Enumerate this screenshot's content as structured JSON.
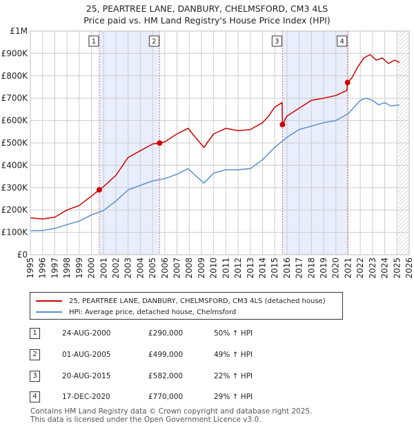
{
  "title_line1": "25, PEARTREE LANE, DANBURY, CHELMSFORD, CM3 4LS",
  "title_line2": "Price paid vs. HM Land Registry's House Price Index (HPI)",
  "colors": {
    "property": "#cc0000",
    "hpi": "#5b8ecf",
    "shade": "#e8eefb",
    "marker_line": "#dd6666",
    "grid": "#cccccc"
  },
  "legend": {
    "property_label": "25, PEARTREE LANE, DANBURY, CHELMSFORD, CM3 4LS (detached house)",
    "hpi_label": "HPI: Average price, detached house, Chelmsford"
  },
  "transactions": [
    {
      "num": "1",
      "date": "24-AUG-2000",
      "price": "£290,000",
      "hpi": "50% ↑ HPI"
    },
    {
      "num": "2",
      "date": "01-AUG-2005",
      "price": "£499,000",
      "hpi": "49% ↑ HPI"
    },
    {
      "num": "3",
      "date": "20-AUG-2015",
      "price": "£582,000",
      "hpi": "22% ↑ HPI"
    },
    {
      "num": "4",
      "date": "17-DEC-2020",
      "price": "£770,000",
      "hpi": "29% ↑ HPI"
    }
  ],
  "footer_line1": "Contains HM Land Registry data © Crown copyright and database right 2025.",
  "footer_line2": "This data is licensed under the Open Government Licence v3.0.",
  "chart_data": {
    "type": "line",
    "title": "25, PEARTREE LANE, DANBURY, CHELMSFORD, CM3 4LS",
    "subtitle": "Price paid vs. HM Land Registry's House Price Index (HPI)",
    "xlabel": "",
    "ylabel": "",
    "xlim": [
      1995,
      2026
    ],
    "ylim": [
      0,
      1000000
    ],
    "y_ticks": [
      {
        "value": 0,
        "label": "£0"
      },
      {
        "value": 100000,
        "label": "£100K"
      },
      {
        "value": 200000,
        "label": "£200K"
      },
      {
        "value": 300000,
        "label": "£300K"
      },
      {
        "value": 400000,
        "label": "£400K"
      },
      {
        "value": 500000,
        "label": "£500K"
      },
      {
        "value": 600000,
        "label": "£600K"
      },
      {
        "value": 700000,
        "label": "£700K"
      },
      {
        "value": 800000,
        "label": "£800K"
      },
      {
        "value": 900000,
        "label": "£900K"
      },
      {
        "value": 1000000,
        "label": "£1M"
      }
    ],
    "x_ticks": [
      "1995",
      "1996",
      "1997",
      "1998",
      "1999",
      "2000",
      "2001",
      "2002",
      "2003",
      "2004",
      "2005",
      "2006",
      "2007",
      "2008",
      "2009",
      "2010",
      "2011",
      "2012",
      "2013",
      "2014",
      "2015",
      "2016",
      "2017",
      "2018",
      "2019",
      "2020",
      "2021",
      "2022",
      "2023",
      "2024",
      "2025",
      "2026"
    ],
    "grid": true,
    "shaded_periods": [
      [
        2000.64,
        2005.58
      ],
      [
        2015.63,
        2020.96
      ]
    ],
    "hatched_from": 2025.0,
    "sales": [
      {
        "label": "1",
        "x": 2000.64,
        "y": 290000
      },
      {
        "label": "2",
        "x": 2005.58,
        "y": 499000
      },
      {
        "label": "3",
        "x": 2015.63,
        "y": 582000
      },
      {
        "label": "4",
        "x": 2020.96,
        "y": 770000
      }
    ],
    "series": [
      {
        "name": "25, PEARTREE LANE, DANBURY, CHELMSFORD, CM3 4LS (detached house)",
        "x": [
          1995,
          1996,
          1997,
          1998,
          1999,
          2000,
          2000.64,
          2001,
          2002,
          2003,
          2004,
          2005,
          2005.58,
          2006,
          2007,
          2007.9,
          2008.5,
          2009.2,
          2010,
          2011,
          2011.5,
          2012,
          2013,
          2014,
          2014.5,
          2015,
          2015.6,
          2015.63,
          2016,
          2017,
          2018,
          2019,
          2020,
          2020.9,
          2020.96,
          2021.3,
          2021.8,
          2022.3,
          2022.8,
          2023.3,
          2023.8,
          2024.3,
          2024.8,
          2025.2
        ],
        "y": [
          165000,
          160000,
          168000,
          200000,
          220000,
          262000,
          290000,
          305000,
          355000,
          435000,
          465000,
          495000,
          499000,
          505000,
          540000,
          565000,
          525000,
          480000,
          540000,
          565000,
          560000,
          555000,
          560000,
          590000,
          620000,
          660000,
          680000,
          582000,
          620000,
          655000,
          690000,
          700000,
          712000,
          735000,
          770000,
          790000,
          840000,
          880000,
          895000,
          870000,
          880000,
          855000,
          870000,
          860000
        ]
      },
      {
        "name": "HPI: Average price, detached house, Chelmsford",
        "x": [
          1995,
          1996,
          1997,
          1998,
          1999,
          2000,
          2001,
          2002,
          2003,
          2004,
          2005,
          2006,
          2007,
          2007.9,
          2008.5,
          2009.2,
          2010,
          2011,
          2012,
          2013,
          2014,
          2015,
          2016,
          2017,
          2018,
          2019,
          2020,
          2021,
          2022,
          2022.5,
          2023,
          2023.5,
          2024,
          2024.5,
          2025.2
        ],
        "y": [
          107000,
          108000,
          118000,
          135000,
          150000,
          178000,
          198000,
          240000,
          290000,
          310000,
          330000,
          340000,
          360000,
          385000,
          355000,
          320000,
          365000,
          380000,
          380000,
          385000,
          425000,
          480000,
          525000,
          560000,
          575000,
          590000,
          600000,
          630000,
          690000,
          700000,
          690000,
          670000,
          680000,
          665000,
          670000
        ]
      }
    ]
  }
}
